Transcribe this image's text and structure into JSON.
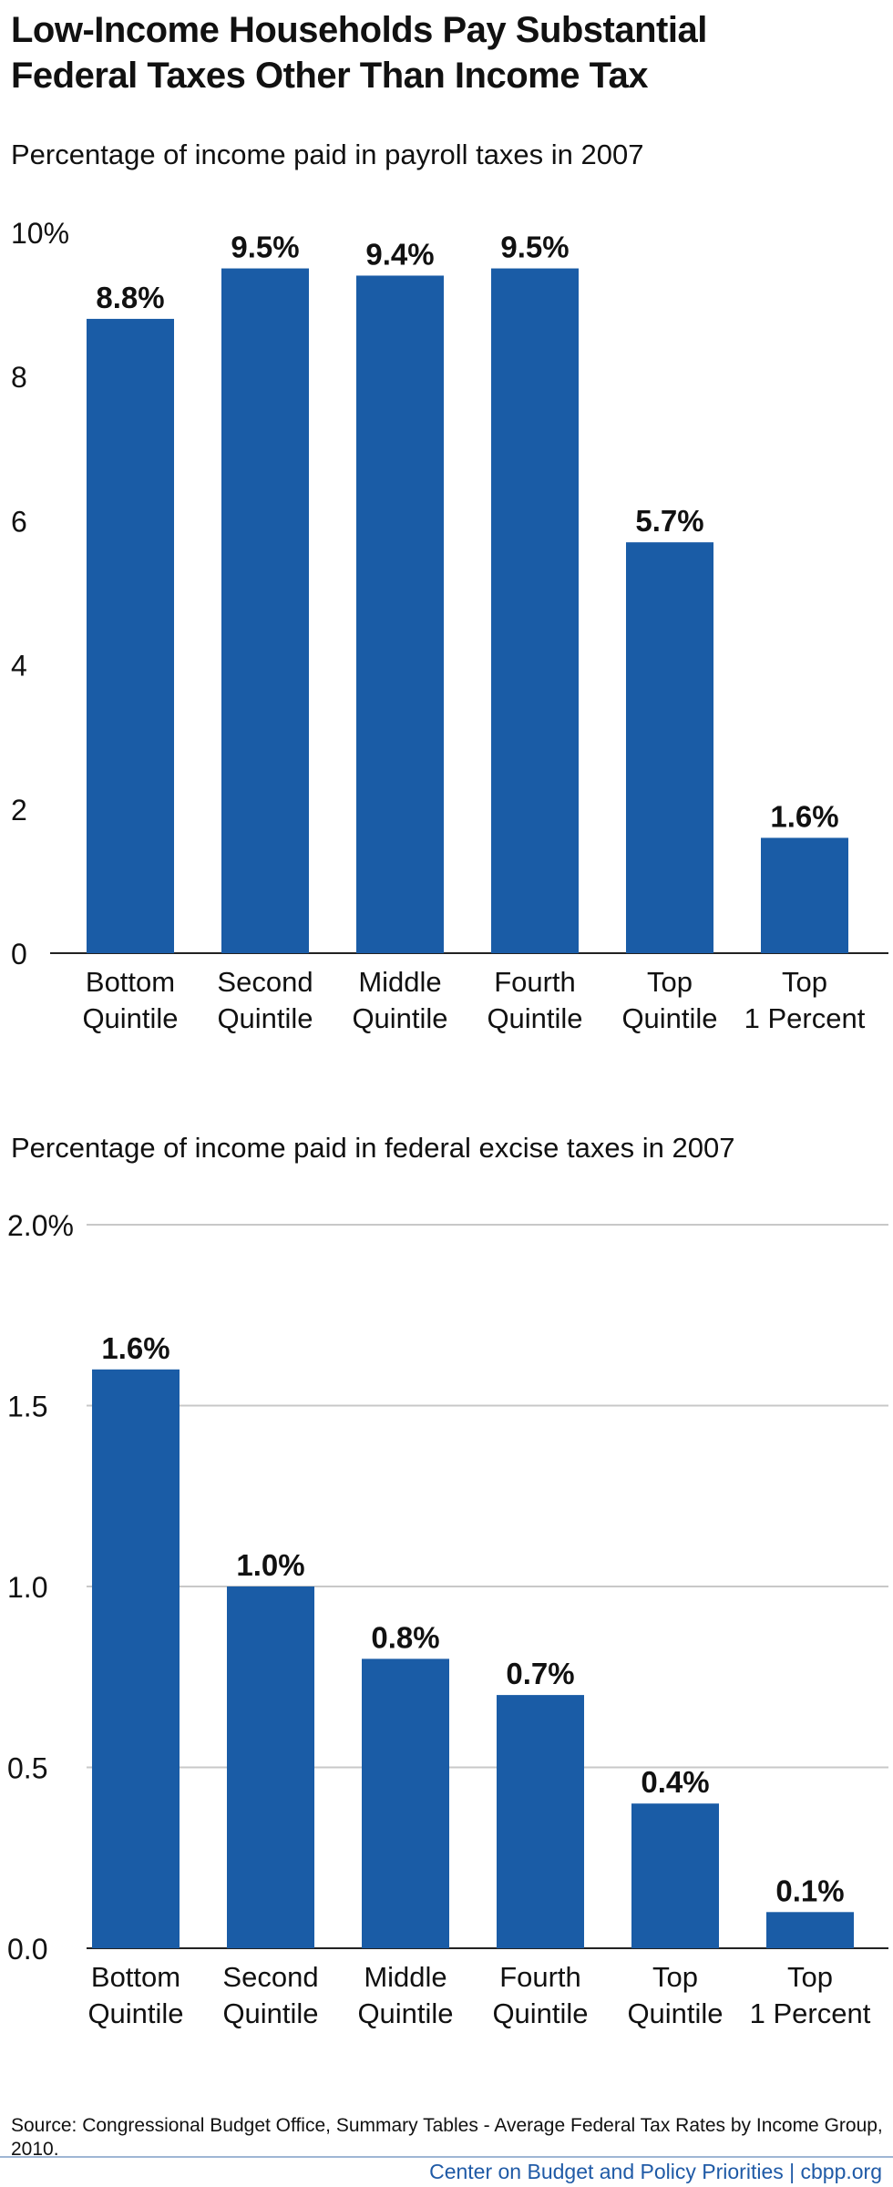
{
  "header": {
    "title_line1": "Low-Income Households Pay Substantial",
    "title_line2": "Federal Taxes Other Than Income Tax"
  },
  "chart_data": [
    {
      "type": "bar",
      "title": "Percentage of income paid in payroll taxes in 2007",
      "categories": [
        [
          "Bottom",
          "Quintile"
        ],
        [
          "Second",
          "Quintile"
        ],
        [
          "Middle",
          "Quintile"
        ],
        [
          "Fourth",
          "Quintile"
        ],
        [
          "Top",
          "Quintile"
        ],
        [
          "Top",
          "1 Percent"
        ]
      ],
      "values": [
        8.8,
        9.5,
        9.4,
        9.5,
        5.7,
        1.6
      ],
      "data_labels": [
        "8.8%",
        "9.5%",
        "9.4%",
        "9.5%",
        "5.7%",
        "1.6%"
      ],
      "ylim": [
        0,
        10
      ],
      "yticks": [
        0,
        2,
        4,
        6,
        8,
        10
      ],
      "ytick_labels": [
        "0",
        "2",
        "4",
        "6",
        "8",
        "10%"
      ],
      "grid": false,
      "bar_color": "#1a5ca6"
    },
    {
      "type": "bar",
      "title": "Percentage of income paid in federal excise taxes in 2007",
      "categories": [
        [
          "Bottom",
          "Quintile"
        ],
        [
          "Second",
          "Quintile"
        ],
        [
          "Middle",
          "Quintile"
        ],
        [
          "Fourth",
          "Quintile"
        ],
        [
          "Top",
          "Quintile"
        ],
        [
          "Top",
          "1 Percent"
        ]
      ],
      "values": [
        1.6,
        1.0,
        0.8,
        0.7,
        0.4,
        0.1
      ],
      "data_labels": [
        "1.6%",
        "1.0%",
        "0.8%",
        "0.7%",
        "0.4%",
        "0.1%"
      ],
      "ylim": [
        0,
        2.0
      ],
      "yticks": [
        0,
        0.5,
        1.0,
        1.5,
        2.0
      ],
      "ytick_labels": [
        "0.0",
        "0.5",
        "1.0",
        "1.5",
        "2.0%"
      ],
      "grid": true,
      "bar_color": "#1a5ca6"
    }
  ],
  "source": {
    "text": "Source: Congressional Budget Office, Summary Tables - Average Federal Tax Rates by Income Group, 2010."
  },
  "footer": {
    "text": "Center on Budget and Policy Priorities | cbpp.org"
  }
}
